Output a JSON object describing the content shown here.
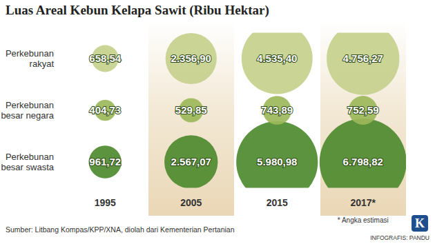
{
  "chart_data": {
    "type": "bubble",
    "title": "Luas Areal Kebun Kelapa Sawit (Ribu Hektar)",
    "categories": [
      "1995",
      "2005",
      "2015",
      "2017*"
    ],
    "series": [
      {
        "name": "Perkebunan rakyat",
        "color": "#c6d08c",
        "values": [
          658.54,
          2356.9,
          4535.4,
          4756.27
        ],
        "value_labels": [
          "658,54",
          "2.356,90",
          "4.535,40",
          "4.756,27"
        ]
      },
      {
        "name": "Perkebunan besar negara",
        "color": "#9cb85a",
        "values": [
          404.73,
          529.85,
          743.89,
          752.59
        ],
        "value_labels": [
          "404,73",
          "529,85",
          "743,89",
          "752,59"
        ]
      },
      {
        "name": "Perkebunan besar swasta",
        "color": "#4e8a2e",
        "values": [
          961.72,
          2567.07,
          5980.98,
          6798.82
        ],
        "value_labels": [
          "961,72",
          "2.567,07",
          "5.980,98",
          "6.798,82"
        ]
      }
    ],
    "data_labels": true,
    "grid": false,
    "annotations": [
      "* Angka estimasi",
      "Sumber: Litbang Kompas/KPP/XNA, diolah dari Kementerian Pertanian",
      "INFOGRAFIS: PANDU"
    ],
    "logo": "K"
  }
}
